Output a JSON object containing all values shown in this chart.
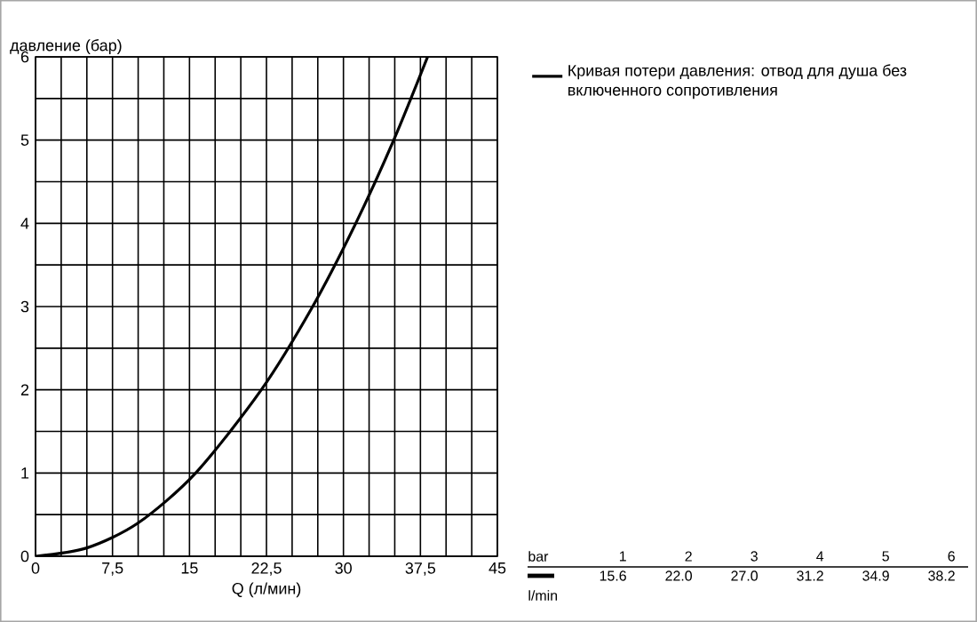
{
  "chart_data": {
    "type": "line",
    "xlabel": "Q (л/мин)",
    "ylabel": "давление (бар)",
    "xlim": [
      0,
      45
    ],
    "ylim": [
      0,
      6
    ],
    "xticks": [
      0,
      {
        "value": 2.5,
        "label": null
      },
      {
        "value": 5,
        "label": null
      },
      {
        "value": 7.5,
        "label": "7,5"
      },
      {
        "value": 10,
        "label": null
      },
      {
        "value": 12.5,
        "label": null
      },
      15,
      {
        "value": 17.5,
        "label": null
      },
      {
        "value": 20,
        "label": null
      },
      {
        "value": 22.5,
        "label": "22,5"
      },
      {
        "value": 25,
        "label": null
      },
      {
        "value": 27.5,
        "label": null
      },
      30,
      {
        "value": 32.5,
        "label": null
      },
      {
        "value": 35,
        "label": null
      },
      {
        "value": 37.5,
        "label": "37,5"
      },
      {
        "value": 40,
        "label": null
      },
      {
        "value": 42.5,
        "label": null
      },
      45
    ],
    "yticks": [
      0,
      {
        "value": 0.5,
        "label": null
      },
      1,
      {
        "value": 1.5,
        "label": null
      },
      2,
      {
        "value": 2.5,
        "label": null
      },
      3,
      {
        "value": 3.5,
        "label": null
      },
      4,
      {
        "value": 4.5,
        "label": null
      },
      5,
      {
        "value": 5.5,
        "label": null
      },
      6
    ],
    "grid": true,
    "legend": "right",
    "annotations": [
      "bar",
      "1",
      "2",
      "3",
      "4",
      "5",
      "6",
      "l/min",
      "15.6",
      "22.0",
      "27.0",
      "31.2",
      "34.9",
      "38.2"
    ],
    "series": [
      {
        "name": "Кривая потери давления: отвод для душа без включенного сопротивления",
        "color": "#000000",
        "x": [
          0,
          5,
          10,
          15.6,
          22.0,
          27.0,
          31.2,
          34.9,
          38.2
        ],
        "values": [
          0,
          0.1,
          0.4,
          1,
          2,
          3,
          4,
          5,
          6
        ]
      }
    ]
  }
}
